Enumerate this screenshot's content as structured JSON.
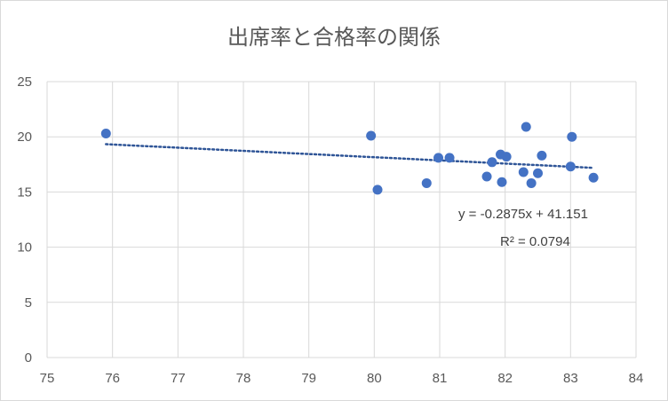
{
  "chart_data": {
    "type": "scatter",
    "title": "出席率と合格率の関係",
    "xlabel": "",
    "ylabel": "",
    "xlim": [
      75,
      84
    ],
    "ylim": [
      0,
      25
    ],
    "x_ticks": [
      75,
      76,
      77,
      78,
      79,
      80,
      81,
      82,
      83,
      84
    ],
    "y_ticks": [
      0,
      5,
      10,
      15,
      20,
      25
    ],
    "grid": true,
    "legend": "none",
    "series": [
      {
        "color": "#4472c4",
        "points": [
          {
            "x": 75.9,
            "y": 20.3
          },
          {
            "x": 79.95,
            "y": 20.1
          },
          {
            "x": 80.05,
            "y": 15.2
          },
          {
            "x": 80.8,
            "y": 15.8
          },
          {
            "x": 80.98,
            "y": 18.1
          },
          {
            "x": 81.15,
            "y": 18.1
          },
          {
            "x": 81.72,
            "y": 16.4
          },
          {
            "x": 81.8,
            "y": 17.7
          },
          {
            "x": 81.93,
            "y": 18.4
          },
          {
            "x": 81.95,
            "y": 15.9
          },
          {
            "x": 82.02,
            "y": 18.2
          },
          {
            "x": 82.28,
            "y": 16.8
          },
          {
            "x": 82.32,
            "y": 20.9
          },
          {
            "x": 82.4,
            "y": 15.8
          },
          {
            "x": 82.5,
            "y": 16.7
          },
          {
            "x": 82.56,
            "y": 18.3
          },
          {
            "x": 83.0,
            "y": 17.3
          },
          {
            "x": 83.02,
            "y": 20.0
          },
          {
            "x": 83.35,
            "y": 16.3
          }
        ]
      }
    ],
    "trendline": {
      "type": "linear",
      "slope": -0.2875,
      "intercept": 41.151,
      "x_range": [
        75.9,
        83.35
      ],
      "color": "#2f5597",
      "equation_label": "y = -0.2875x + 41.151",
      "r2_label": "R² = 0.0794"
    }
  }
}
